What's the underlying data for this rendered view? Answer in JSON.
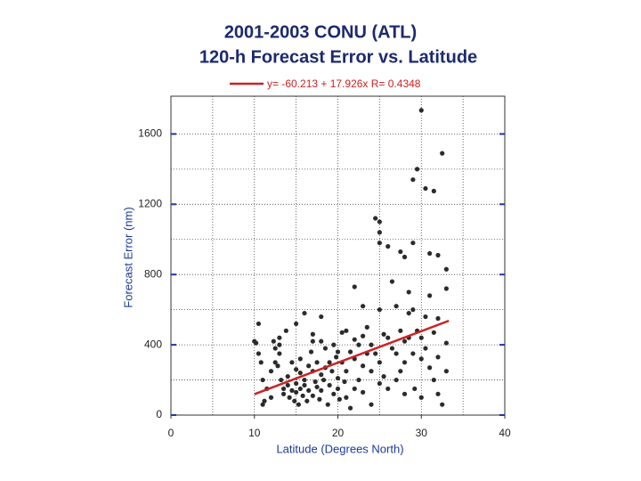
{
  "chart_data": {
    "type": "scatter",
    "title": "2001-2003 CONU (ATL)",
    "subtitle": "120-h Forecast Error vs. Latitude",
    "x_label": "Latitude (Degrees North)",
    "y_label": "Forecast Error (nm)",
    "xlim": [
      0,
      40
    ],
    "ylim": [
      0,
      1815
    ],
    "xticks": [
      0,
      10,
      20,
      30,
      40
    ],
    "yticks": [
      0,
      400,
      800,
      1200,
      1600
    ],
    "x_gridlines": [
      5,
      10,
      15,
      20,
      25,
      30,
      35
    ],
    "y_gridlines": [
      200,
      400,
      600,
      800,
      1000,
      1200,
      1400,
      1600
    ],
    "grid": true,
    "color": "#2b2b2b",
    "fit": {
      "label": "y= -60.213 + 17.926x   R= 0.4348",
      "intercept": -60.213,
      "slope": 17.926,
      "x_range": [
        10,
        33.3
      ],
      "color": "#cc2222"
    },
    "x": [
      10,
      10.2,
      10.5,
      10.5,
      10.8,
      11,
      11.2,
      11,
      11.5,
      12,
      12,
      12.3,
      12.5,
      12.5,
      12.8,
      13,
      13,
      13,
      13.2,
      13.5,
      13.5,
      13.8,
      14,
      14,
      14.2,
      14.5,
      14.5,
      14.8,
      15,
      15,
      15,
      15,
      15.3,
      15.5,
      15.5,
      15.5,
      15.8,
      16,
      16,
      16,
      16.3,
      16.5,
      16.5,
      16.8,
      17,
      17,
      17,
      17,
      17.3,
      17.5,
      17.5,
      17.8,
      18,
      18,
      18,
      18,
      18.3,
      18.5,
      18.5,
      18.8,
      19,
      19,
      19.3,
      19.5,
      19.5,
      19.8,
      20,
      20,
      20,
      20.2,
      20.5,
      20.5,
      20.8,
      21,
      21,
      21,
      21.5,
      21.5,
      22,
      22,
      22,
      22,
      22.5,
      22.5,
      23,
      23,
      23,
      23,
      23.5,
      23.5,
      24,
      24,
      24,
      24.5,
      24.5,
      25,
      25,
      25,
      25,
      25,
      25,
      25.5,
      25.5,
      26,
      26,
      26,
      26.5,
      26.5,
      27,
      27,
      27,
      27.5,
      27.5,
      27.5,
      28,
      28,
      28,
      28,
      28.5,
      28.5,
      28.5,
      29,
      29,
      29,
      29,
      29.2,
      29.5,
      29.5,
      30,
      30,
      30,
      30,
      30.5,
      30.5,
      30.5,
      31,
      31,
      31,
      31.5,
      31.5,
      31.5,
      32,
      32,
      32,
      32,
      32.5,
      32.5,
      33,
      33,
      33,
      33
    ],
    "values": [
      420,
      410,
      520,
      350,
      300,
      200,
      80,
      60,
      150,
      250,
      100,
      420,
      380,
      300,
      280,
      440,
      400,
      350,
      200,
      150,
      120,
      480,
      220,
      170,
      100,
      300,
      140,
      80,
      520,
      260,
      180,
      130,
      60,
      320,
      240,
      150,
      110,
      580,
      200,
      170,
      80,
      280,
      140,
      360,
      460,
      420,
      250,
      110,
      190,
      300,
      160,
      90,
      560,
      420,
      230,
      140,
      200,
      380,
      270,
      60,
      300,
      170,
      250,
      400,
      120,
      330,
      360,
      210,
      150,
      90,
      470,
      300,
      190,
      480,
      250,
      100,
      360,
      40,
      730,
      430,
      320,
      150,
      400,
      200,
      620,
      450,
      280,
      130,
      500,
      350,
      400,
      250,
      60,
      1120,
      350,
      1100,
      1040,
      980,
      600,
      300,
      180,
      460,
      220,
      960,
      440,
      150,
      760,
      380,
      620,
      350,
      200,
      930,
      480,
      250,
      900,
      420,
      300,
      120,
      700,
      580,
      440,
      1340,
      980,
      600,
      350,
      150,
      1400,
      480,
      1735,
      440,
      320,
      100,
      1290,
      560,
      380,
      920,
      680,
      270,
      1275,
      470,
      200,
      910,
      550,
      330,
      120,
      1490,
      60,
      830,
      720,
      410,
      250
    ]
  }
}
